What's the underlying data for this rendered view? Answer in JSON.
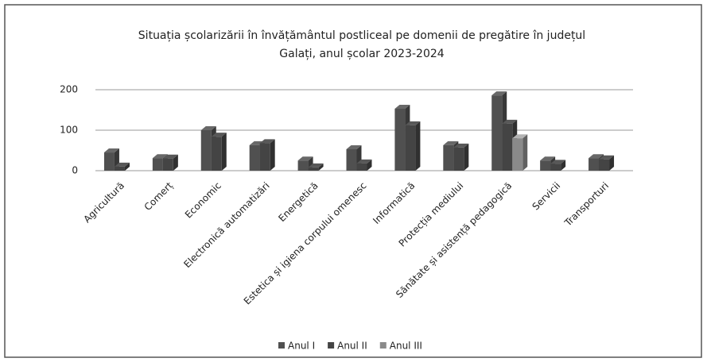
{
  "chart_data": {
    "type": "bar",
    "title": [
      "Situația școlarizării în învățământul postliceal pe domenii de pregătire în județul",
      "Galați, anul școlar 2023-2024"
    ],
    "categories": [
      "Agricultură",
      "Comerț",
      "Economic",
      "Electronică automatizări",
      "Energetică",
      "Estetica și igiena corpului omenesc",
      "Informatică",
      "Protecția mediului",
      "Sănătate și asistență pedagogică",
      "Servicii",
      "Transporturi"
    ],
    "series": [
      {
        "name": "Anul I",
        "color": "#505050",
        "values": [
          45,
          31,
          100,
          63,
          25,
          53,
          153,
          63,
          186,
          25,
          31
        ]
      },
      {
        "name": "Anul II",
        "color": "#444444",
        "values": [
          10,
          30,
          84,
          68,
          8,
          18,
          112,
          57,
          116,
          17,
          28
        ]
      },
      {
        "name": "Anul III",
        "color": "#8a8a8a",
        "values": [
          null,
          null,
          null,
          null,
          null,
          null,
          null,
          null,
          80,
          null,
          null
        ]
      }
    ],
    "ylim": [
      0,
      200
    ],
    "yticks": [
      0,
      100,
      200
    ],
    "grid": true
  }
}
